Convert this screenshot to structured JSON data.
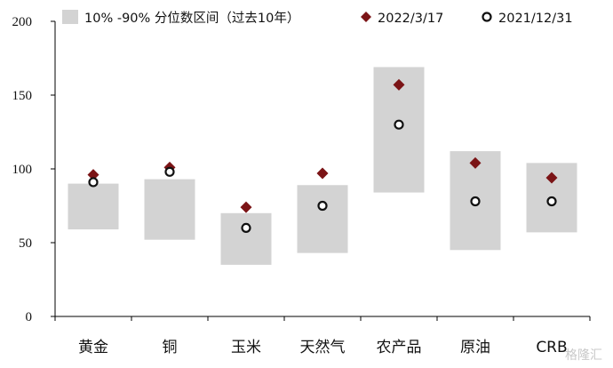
{
  "chart_data": {
    "type": "range-dot",
    "title": "",
    "xlabel": "",
    "ylabel": "",
    "ylim": [
      0,
      200
    ],
    "yticks": [
      0,
      50,
      100,
      150,
      200
    ],
    "grid": false,
    "legend_position": "top",
    "categories": [
      "黄金",
      "铜",
      "玉米",
      "天然气",
      "农产品",
      "原油",
      "CRB"
    ],
    "range_series": {
      "name": "10% -90% 分位数区间（过去10年）",
      "color": "#d3d3d3",
      "low": [
        59,
        52,
        35,
        43,
        84,
        45,
        57
      ],
      "high": [
        90,
        93,
        70,
        89,
        169,
        112,
        104
      ]
    },
    "series": [
      {
        "name": "2022/3/17",
        "marker": "diamond",
        "color": "#7b1416",
        "values": [
          96,
          101,
          74,
          97,
          157,
          104,
          94
        ]
      },
      {
        "name": "2021/12/31",
        "marker": "circle-open",
        "color": "#111111",
        "values": [
          91,
          98,
          60,
          75,
          130,
          78,
          78
        ]
      }
    ]
  },
  "watermark": "格隆汇"
}
